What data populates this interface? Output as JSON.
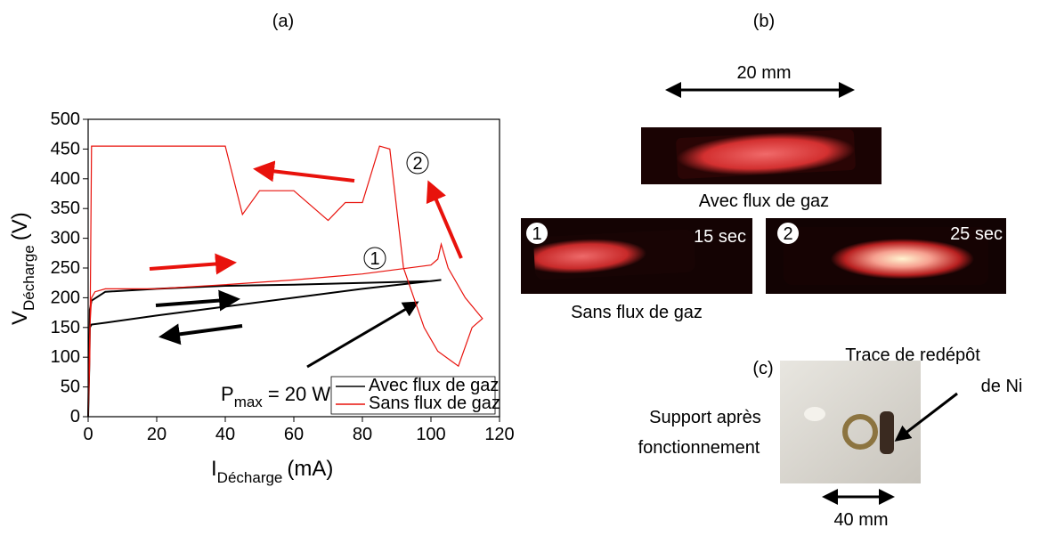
{
  "chart_data": {
    "type": "line",
    "panel_label": "(a)",
    "xlabel": {
      "symbol": "I",
      "subscript": "Décharge",
      "unit": "(mA)"
    },
    "ylabel": {
      "symbol": "V",
      "subscript": "Décharge",
      "unit": "(V)"
    },
    "xlim": [
      0,
      120
    ],
    "xticks": [
      0,
      20,
      40,
      60,
      80,
      100,
      120
    ],
    "ylim": [
      0,
      500
    ],
    "yticks": [
      0,
      50,
      100,
      150,
      200,
      250,
      300,
      350,
      400,
      450,
      500
    ],
    "grid": false,
    "legend": "lower right",
    "series": [
      {
        "name": "Avec flux de gaz",
        "color": "#000000",
        "x": [
          0,
          0.3,
          0.5,
          1,
          5,
          20,
          40,
          60,
          80,
          100,
          103,
          80,
          60,
          40,
          20,
          5,
          1,
          0.5,
          0.3,
          0
        ],
        "values": [
          0,
          100,
          180,
          195,
          210,
          215,
          220,
          222,
          225,
          228,
          230,
          215,
          200,
          185,
          170,
          158,
          155,
          150,
          80,
          0
        ]
      },
      {
        "name": "Sans flux de gaz",
        "color": "#e8120c",
        "x": [
          0,
          0.5,
          1,
          2,
          5,
          20,
          40,
          60,
          80,
          100,
          102,
          103,
          105,
          110,
          115,
          112,
          108,
          102,
          98,
          92,
          88,
          85,
          80,
          75,
          70,
          60,
          50,
          45,
          40,
          38,
          2,
          1,
          0.5,
          0
        ],
        "values": [
          0,
          150,
          200,
          210,
          215,
          215,
          222,
          230,
          240,
          255,
          265,
          290,
          250,
          200,
          165,
          150,
          85,
          110,
          150,
          250,
          450,
          455,
          360,
          360,
          330,
          380,
          380,
          340,
          455,
          455,
          455,
          455,
          100,
          0
        ]
      }
    ],
    "annotations": {
      "power": {
        "symbol": "P",
        "subscript": "max",
        "text": "= 20 W"
      },
      "markers": [
        "1",
        "2"
      ]
    }
  },
  "panel_b": {
    "label": "(b)",
    "scale": "20 mm",
    "top_caption": "Avec flux de gaz",
    "bottom_caption": "Sans flux de gaz",
    "photo_1": {
      "marker": "1",
      "time": "15 sec"
    },
    "photo_2": {
      "marker": "2",
      "time": "25 sec"
    }
  },
  "panel_c": {
    "label": "(c)",
    "trace_line_1": "Trace de redépôt",
    "trace_line_2": "de Ni",
    "support_line_1": "Support après",
    "support_line_2": "fonctionnement",
    "scale": "40 mm"
  }
}
